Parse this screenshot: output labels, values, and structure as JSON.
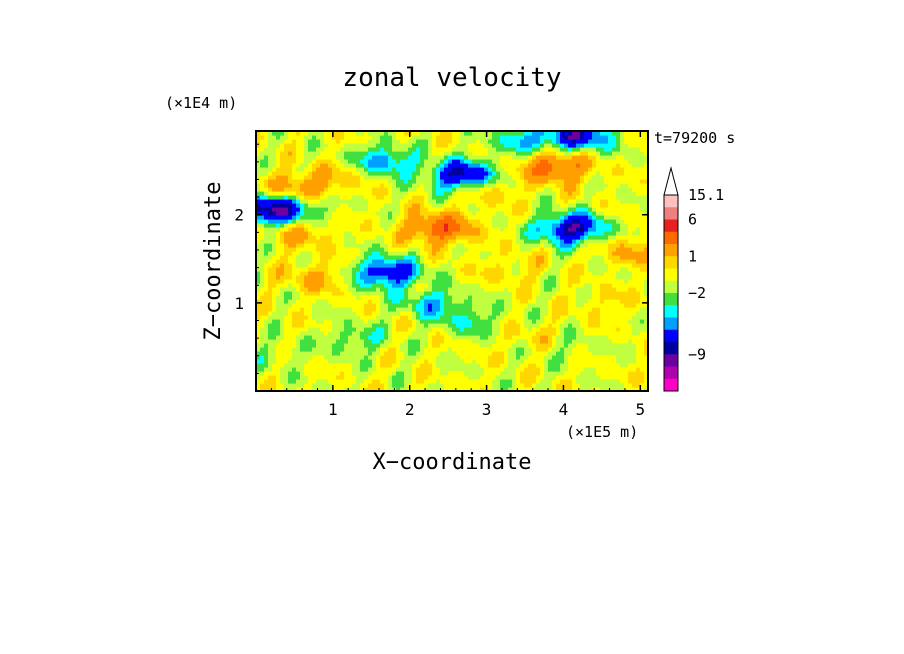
{
  "chart_data": {
    "type": "heatmap",
    "title": "zonal velocity",
    "xlabel": "X−coordinate",
    "ylabel": "Z−coordinate",
    "x_unit": "(×1E5 m)",
    "y_unit": "(×1E4 m)",
    "time_label": "t=79200 s",
    "xlim": [
      0,
      5.1
    ],
    "ylim": [
      0,
      2.95
    ],
    "x_ticks": [
      {
        "value": 1,
        "label": "1"
      },
      {
        "value": 2,
        "label": "2"
      },
      {
        "value": 3,
        "label": "3"
      },
      {
        "value": 4,
        "label": "4"
      },
      {
        "value": 5,
        "label": "5"
      }
    ],
    "y_ticks": [
      {
        "value": 1,
        "label": "1"
      },
      {
        "value": 2,
        "label": "2"
      }
    ],
    "colorbar": {
      "max_label": "15.1",
      "levels": [
        {
          "value": 15.1,
          "color": "#ffffff"
        },
        {
          "value": 12,
          "color": "#ffc0c0"
        },
        {
          "value": 9,
          "color": "#f08080"
        },
        {
          "value": 6,
          "color": "#e82020"
        },
        {
          "value": 4,
          "color": "#ff6a00"
        },
        {
          "value": 2,
          "color": "#ffa000"
        },
        {
          "value": 1,
          "color": "#ffd700"
        },
        {
          "value": 0,
          "color": "#ffff00"
        },
        {
          "value": -1,
          "color": "#bfff3f"
        },
        {
          "value": -2,
          "color": "#40e040"
        },
        {
          "value": -3,
          "color": "#00ffff"
        },
        {
          "value": -4,
          "color": "#00a0ff"
        },
        {
          "value": -6,
          "color": "#0000ff"
        },
        {
          "value": -7,
          "color": "#0000a0"
        },
        {
          "value": -9,
          "color": "#6a00a0"
        },
        {
          "value": -12,
          "color": "#b000b0"
        },
        {
          "value": -15,
          "color": "#ff00c8"
        }
      ],
      "labels": [
        {
          "value": 15.1,
          "label": "15.1"
        },
        {
          "value": 6,
          "label": "6"
        },
        {
          "value": 1,
          "label": "1"
        },
        {
          "value": -2,
          "label": "−2"
        },
        {
          "value": -9,
          "label": "−9"
        }
      ]
    },
    "features": [
      {
        "x": 2.4,
        "z": 1.85,
        "value": 5
      },
      {
        "x": 3.9,
        "z": 2.55,
        "value": 5
      },
      {
        "x": 0.6,
        "z": 2.3,
        "value": 4
      },
      {
        "x": 1.4,
        "z": 2.55,
        "value": 3
      },
      {
        "x": 2.7,
        "z": 2.45,
        "value": -7
      },
      {
        "x": 4.1,
        "z": 1.85,
        "value": -7
      },
      {
        "x": 1.7,
        "z": 1.35,
        "value": -6
      },
      {
        "x": 1.6,
        "z": 2.6,
        "value": -6
      },
      {
        "x": 0.5,
        "z": 2.1,
        "value": -4
      },
      {
        "x": 0.05,
        "z": 2.05,
        "value": -6
      },
      {
        "x": 3.0,
        "z": 2.3,
        "value": 2
      },
      {
        "x": 2.3,
        "z": 1.0,
        "value": -3
      },
      {
        "x": 1.3,
        "z": 0.6,
        "value": -2
      },
      {
        "x": 2.8,
        "z": 0.8,
        "value": -2
      },
      {
        "x": 4.0,
        "z": 0.5,
        "value": -1
      },
      {
        "x": 0.3,
        "z": 0.4,
        "value": -1
      },
      {
        "x": 4.6,
        "z": 1.0,
        "value": 1
      },
      {
        "x": 0.8,
        "z": 1.3,
        "value": 2
      },
      {
        "x": 3.3,
        "z": 1.4,
        "value": 1
      },
      {
        "x": 3.5,
        "z": 2.85,
        "value": -3
      },
      {
        "x": 4.2,
        "z": 2.9,
        "value": -6
      },
      {
        "x": 1.0,
        "z": 0.7,
        "value": 0
      },
      {
        "x": 2.0,
        "z": 0.15,
        "value": 0
      },
      {
        "x": 3.6,
        "z": 0.6,
        "value": 1
      },
      {
        "x": 0.6,
        "z": 1.8,
        "value": 2
      },
      {
        "x": 4.9,
        "z": 1.6,
        "value": 2
      }
    ]
  }
}
